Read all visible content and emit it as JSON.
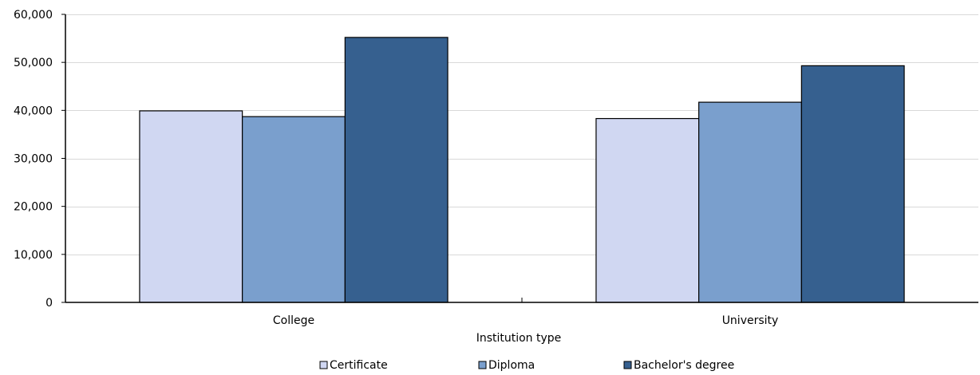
{
  "chart_data": {
    "type": "bar",
    "title": "",
    "xlabel": "Institution type",
    "ylabel": "",
    "categories": [
      "College",
      "University"
    ],
    "series": [
      {
        "name": "Certificate",
        "color": "#d0d7f2",
        "values": [
          39900,
          38300
        ]
      },
      {
        "name": "Diploma",
        "color": "#7a9fcd",
        "values": [
          38700,
          41700
        ]
      },
      {
        "name": "Bachelor's degree",
        "color": "#36608f",
        "values": [
          55200,
          49300
        ]
      }
    ],
    "ylim": [
      0,
      60000
    ],
    "yticks": [
      0,
      10000,
      20000,
      30000,
      40000,
      50000,
      60000
    ],
    "ytick_labels": [
      "0",
      "10,000",
      "20,000",
      "30,000",
      "40,000",
      "50,000",
      "60,000"
    ],
    "grid": "horizontal",
    "legend_position": "bottom-center"
  }
}
